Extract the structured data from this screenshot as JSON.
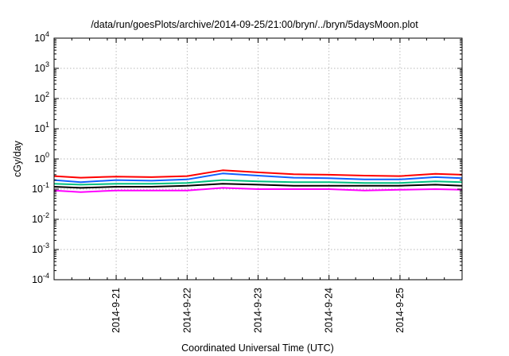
{
  "chart_data": {
    "type": "line",
    "title": "/data/run/goesPlots/archive/2014-09-25/21:00/bryn/../bryn/5daysMoon.plot",
    "xlabel": "Coordinated Universal Time (UTC)",
    "ylabel": "cGy/day",
    "y_scale": "log",
    "ylim": [
      0.0001,
      10000
    ],
    "y_ticks": [
      {
        "base": "10",
        "exp": "-4"
      },
      {
        "base": "10",
        "exp": "-3"
      },
      {
        "base": "10",
        "exp": "-2"
      },
      {
        "base": "10",
        "exp": "-1"
      },
      {
        "base": "10",
        "exp": "0"
      },
      {
        "base": "10",
        "exp": "1"
      },
      {
        "base": "10",
        "exp": "2"
      },
      {
        "base": "10",
        "exp": "3"
      },
      {
        "base": "10",
        "exp": "4"
      }
    ],
    "xlim": [
      "2014-09-20 03:00",
      "2014-09-25 21:00"
    ],
    "x_ticks": [
      "2014-9-21",
      "2014-9-22",
      "2014-9-23",
      "2014-9-24",
      "2014-9-25"
    ],
    "grid": true,
    "legend": "none",
    "series": [
      {
        "color": "#ff0000",
        "x": [
          "2014-09-20 03:00",
          "2014-09-20 12:00",
          "2014-09-21 00:00",
          "2014-09-21 12:00",
          "2014-09-22 00:00",
          "2014-09-22 12:00",
          "2014-09-23 00:00",
          "2014-09-23 12:00",
          "2014-09-24 00:00",
          "2014-09-24 12:00",
          "2014-09-25 00:00",
          "2014-09-25 12:00",
          "2014-09-25 21:00"
        ],
        "y": [
          0.27,
          0.24,
          0.26,
          0.25,
          0.27,
          0.42,
          0.36,
          0.31,
          0.3,
          0.28,
          0.27,
          0.32,
          0.3
        ]
      },
      {
        "color": "#1060ff",
        "x": [
          "2014-09-20 03:00",
          "2014-09-20 12:00",
          "2014-09-21 00:00",
          "2014-09-21 12:00",
          "2014-09-22 00:00",
          "2014-09-22 12:00",
          "2014-09-23 00:00",
          "2014-09-23 12:00",
          "2014-09-24 00:00",
          "2014-09-24 12:00",
          "2014-09-25 00:00",
          "2014-09-25 12:00",
          "2014-09-25 21:00"
        ],
        "y": [
          0.2,
          0.17,
          0.2,
          0.19,
          0.21,
          0.33,
          0.28,
          0.24,
          0.23,
          0.21,
          0.21,
          0.25,
          0.23
        ]
      },
      {
        "color": "#00c080",
        "x": [
          "2014-09-20 03:00",
          "2014-09-20 12:00",
          "2014-09-21 00:00",
          "2014-09-21 12:00",
          "2014-09-22 00:00",
          "2014-09-22 12:00",
          "2014-09-23 00:00",
          "2014-09-23 12:00",
          "2014-09-24 00:00",
          "2014-09-24 12:00",
          "2014-09-25 00:00",
          "2014-09-25 12:00",
          "2014-09-25 21:00"
        ],
        "y": [
          0.15,
          0.14,
          0.15,
          0.15,
          0.16,
          0.2,
          0.18,
          0.17,
          0.17,
          0.16,
          0.16,
          0.18,
          0.17
        ]
      },
      {
        "color": "#000000",
        "x": [
          "2014-09-20 03:00",
          "2014-09-20 12:00",
          "2014-09-21 00:00",
          "2014-09-21 12:00",
          "2014-09-22 00:00",
          "2014-09-22 12:00",
          "2014-09-23 00:00",
          "2014-09-23 12:00",
          "2014-09-24 00:00",
          "2014-09-24 12:00",
          "2014-09-25 00:00",
          "2014-09-25 12:00",
          "2014-09-25 21:00"
        ],
        "y": [
          0.12,
          0.11,
          0.12,
          0.12,
          0.13,
          0.15,
          0.14,
          0.13,
          0.13,
          0.13,
          0.13,
          0.14,
          0.13
        ]
      },
      {
        "color": "#ff00ff",
        "x": [
          "2014-09-20 03:00",
          "2014-09-20 12:00",
          "2014-09-21 00:00",
          "2014-09-21 12:00",
          "2014-09-22 00:00",
          "2014-09-22 12:00",
          "2014-09-23 00:00",
          "2014-09-23 12:00",
          "2014-09-24 00:00",
          "2014-09-24 12:00",
          "2014-09-25 00:00",
          "2014-09-25 12:00",
          "2014-09-25 21:00"
        ],
        "y": [
          0.09,
          0.08,
          0.09,
          0.09,
          0.09,
          0.11,
          0.1,
          0.1,
          0.1,
          0.09,
          0.095,
          0.1,
          0.095
        ]
      }
    ]
  }
}
